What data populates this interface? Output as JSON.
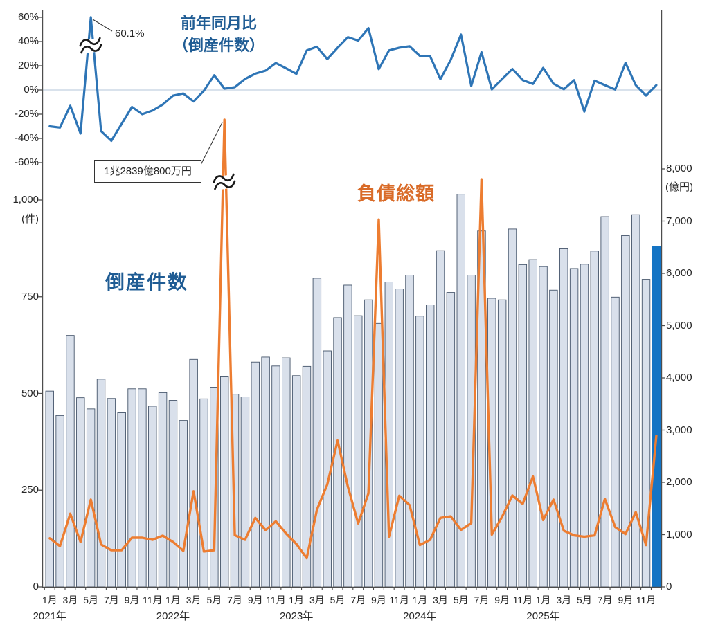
{
  "chart_data": {
    "type": "combo-bar-line",
    "x_start": "2021年1月",
    "x_end": "2025年12月",
    "labels": {
      "yoy_title_1": "前年同月比",
      "yoy_title_2": "（倒産件数）",
      "bars_label": "倒産件数",
      "debt_label": "負債総額",
      "peak_annotation": "60.1%",
      "debt_annotation": "1兆2839億800万円",
      "left_unit": "(件)",
      "right_unit": "(億円)"
    },
    "series": [
      {
        "name": "倒産件数",
        "type": "bar",
        "unit": "件",
        "axis": "left-count",
        "values": [
          506,
          443,
          650,
          489,
          460,
          537,
          487,
          450,
          512,
          512,
          467,
          502,
          482,
          430,
          588,
          486,
          516,
          543,
          498,
          491,
          581,
          594,
          571,
          592,
          546,
          570,
          798,
          610,
          696,
          780,
          701,
          742,
          681,
          788,
          770,
          806,
          700,
          729,
          869,
          761,
          1015,
          806,
          920,
          746,
          742,
          925,
          833,
          846,
          828,
          767,
          874,
          823,
          834,
          868,
          957,
          749,
          908,
          962,
          795,
          880
        ],
        "highlight_last": true
      },
      {
        "name": "負債総額",
        "type": "line",
        "unit": "億円",
        "axis": "right",
        "values": [
          930,
          780,
          1400,
          860,
          1670,
          810,
          700,
          700,
          940,
          940,
          900,
          980,
          860,
          690,
          1830,
          675,
          700,
          12839,
          990,
          900,
          1320,
          1085,
          1255,
          1020,
          820,
          550,
          1480,
          1960,
          2800,
          1920,
          1215,
          1790,
          7030,
          960,
          1745,
          1565,
          800,
          900,
          1320,
          1350,
          1090,
          1220,
          7800,
          1000,
          1340,
          1750,
          1590,
          2115,
          1280,
          1670,
          1075,
          985,
          960,
          985,
          1685,
          1145,
          1010,
          1430,
          800,
          2890
        ],
        "clipped_point": "2022年6月",
        "clipped_value_text": "1兆2839億800万円"
      },
      {
        "name": "前年同月比（倒産件数）",
        "type": "line",
        "unit": "%",
        "axis": "left-percent",
        "values": [
          -30,
          -31,
          -13,
          -36,
          60.1,
          -34,
          -42,
          -28,
          -14,
          -20,
          -17,
          -12,
          -4.7,
          -2.9,
          -9.5,
          -0.6,
          12.2,
          1.1,
          2.3,
          9.1,
          13.5,
          16.0,
          22.3,
          17.9,
          13.3,
          32.6,
          35.7,
          25.5,
          34.9,
          43.6,
          40.8,
          51.1,
          17.2,
          32.7,
          34.9,
          36.1,
          28.2,
          27.9,
          8.9,
          24.8,
          45.8,
          3.3,
          31.2,
          0.5,
          9.0,
          17.4,
          8.2,
          5.0,
          18.3,
          5.2,
          0.6,
          8.1,
          -17.8,
          7.7,
          4.0,
          0.4,
          22.4,
          4.0,
          -4.6,
          4.0
        ],
        "clipped_point": "2021年5月",
        "clipped_value_text": "60.1%"
      }
    ],
    "axes": {
      "left_percent": {
        "ticks": [
          {
            "label": "60%",
            "value": 60
          },
          {
            "label": "40%",
            "value": 40
          },
          {
            "label": "20%",
            "value": 20
          },
          {
            "label": "0%",
            "value": 0
          },
          {
            "label": "-20%",
            "value": -20
          },
          {
            "label": "-40%",
            "value": -40
          },
          {
            "label": "-60%",
            "value": -60
          }
        ],
        "gridline_at": 0
      },
      "left_count": {
        "unit": "(件)",
        "ticks": [
          {
            "label": "1,000",
            "value": 1000
          },
          {
            "label": "750",
            "value": 750
          },
          {
            "label": "500",
            "value": 500
          },
          {
            "label": "250",
            "value": 250
          },
          {
            "label": "0",
            "value": 0
          }
        ]
      },
      "right": {
        "unit": "(億円)",
        "max": 8000,
        "ticks": [
          {
            "label": "8,000",
            "value": 8000
          },
          {
            "label": "7,000",
            "value": 7000
          },
          {
            "label": "6,000",
            "value": 6000
          },
          {
            "label": "5,000",
            "value": 5000
          },
          {
            "label": "4,000",
            "value": 4000
          },
          {
            "label": "3,000",
            "value": 3000
          },
          {
            "label": "2,000",
            "value": 2000
          },
          {
            "label": "1,000",
            "value": 1000
          },
          {
            "label": "0",
            "value": 0
          }
        ]
      },
      "x": {
        "month_labels": [
          "1月",
          "3月",
          "5月",
          "7月",
          "9月",
          "11月"
        ],
        "years": [
          {
            "label": "2021年"
          },
          {
            "label": "2022年"
          },
          {
            "label": "2023年"
          },
          {
            "label": "2024年"
          },
          {
            "label": "2025年"
          }
        ]
      }
    },
    "colors": {
      "bar_fill": "#D9E0EB",
      "bar_stroke": "#44546A",
      "bar_highlight": "#1474C4",
      "line_yoy": "#2E75B6",
      "line_debt": "#ED7D31",
      "title_navy": "#1F5C94",
      "debt_text": "#D96B28",
      "axis": "#4d4d4d",
      "gridline": "#D9E2EC",
      "break_mark": "#1a1a1a"
    }
  }
}
